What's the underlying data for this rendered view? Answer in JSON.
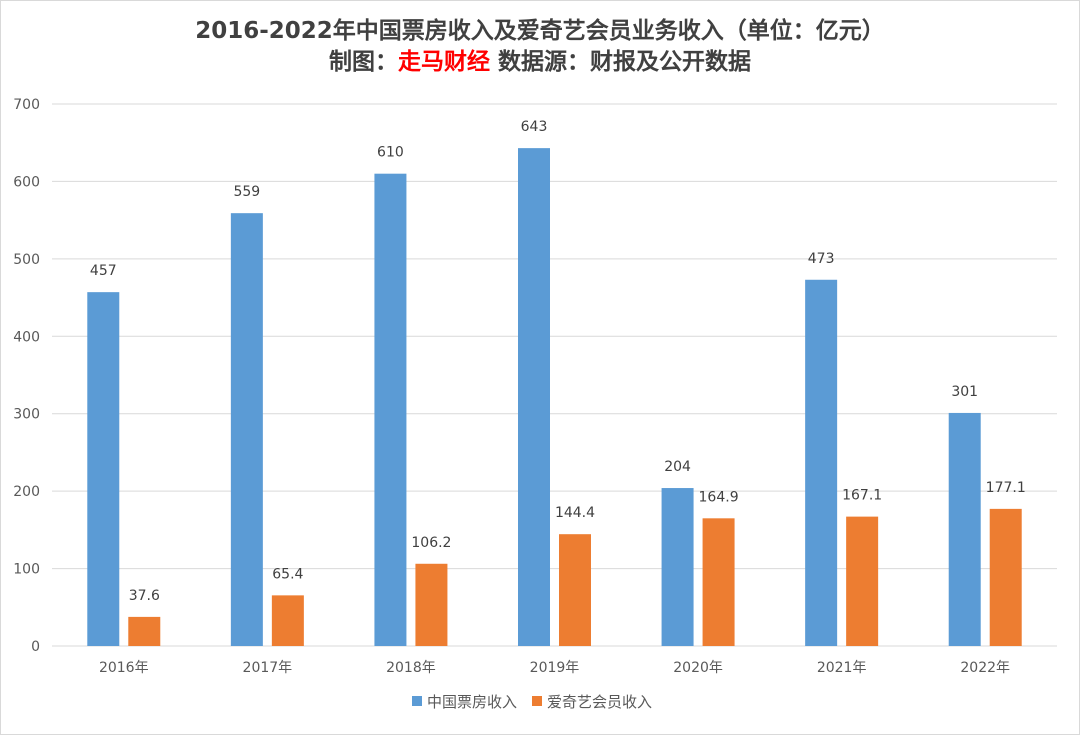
{
  "chart_data": {
    "type": "bar",
    "title": "2016-2022年中国票房收入及爱奇艺会员业务收入（单位：亿元）",
    "subtitle": {
      "prefix": "制图：",
      "highlight": "走马财经",
      "suffix": " 数据源：财报及公开数据"
    },
    "categories": [
      "2016年",
      "2017年",
      "2018年",
      "2019年",
      "2020年",
      "2021年",
      "2022年"
    ],
    "series": [
      {
        "name": "中国票房收入",
        "color": "#5b9bd5",
        "values": [
          457,
          559,
          610,
          643,
          204,
          473,
          301
        ],
        "labels": [
          "457",
          "559",
          "610",
          "643",
          "204",
          "473",
          "301"
        ]
      },
      {
        "name": "爱奇艺会员收入",
        "color": "#ed7d31",
        "values": [
          37.6,
          65.4,
          106.2,
          144.4,
          164.9,
          167.1,
          177.1
        ],
        "labels": [
          "37.6",
          "65.4",
          "106.2",
          "144.4",
          "164.9",
          "167.1",
          "177.1"
        ]
      }
    ],
    "ylim": [
      0,
      700
    ],
    "yticks": [
      "0",
      "100",
      "200",
      "300",
      "400",
      "500",
      "600",
      "700"
    ],
    "grid": true,
    "legend_position": "bottom"
  }
}
